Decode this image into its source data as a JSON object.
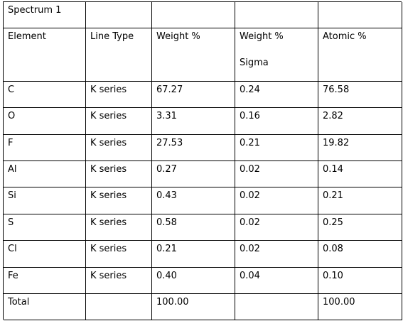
{
  "table": {
    "title": "Spectrum 1",
    "header": [
      "Element",
      "Line Type",
      "Weight %",
      "Weight %\nSigma",
      "Atomic %"
    ],
    "rows": [
      [
        "C",
        "K series",
        "67.27",
        "0.24",
        "76.58"
      ],
      [
        "O",
        "K series",
        "3.31",
        "0.16",
        "2.82"
      ],
      [
        "F",
        "K series",
        "27.53",
        "0.21",
        "19.82"
      ],
      [
        "Al",
        "K series",
        "0.27",
        "0.02",
        "0.14"
      ],
      [
        "Si",
        "K series",
        "0.43",
        "0.02",
        "0.21"
      ],
      [
        "S",
        "K series",
        "0.58",
        "0.02",
        "0.25"
      ],
      [
        "Cl",
        "K series",
        "0.21",
        "0.02",
        "0.08"
      ],
      [
        "Fe",
        "K series",
        "0.40",
        "0.04",
        "0.10"
      ]
    ],
    "total": {
      "label": "Total",
      "weight": "100.00",
      "atomic": "100.00"
    }
  }
}
